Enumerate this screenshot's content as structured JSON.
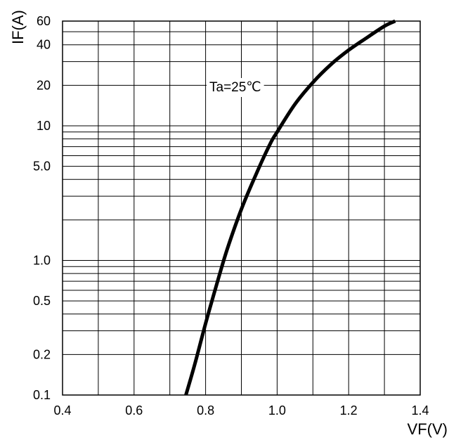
{
  "chart_data": {
    "type": "line",
    "xlabel": "VF(V)",
    "ylabel": "IF(A)",
    "xlim": [
      0.4,
      1.4
    ],
    "ylim": [
      0.1,
      60
    ],
    "yscale": "log",
    "grid": true,
    "x_ticks": [
      0.4,
      0.6,
      0.8,
      1.0,
      1.2,
      1.4
    ],
    "x_tick_labels": [
      "0.4",
      "0.6",
      "0.8",
      "1.0",
      "1.2",
      "1.4"
    ],
    "y_ticks": [
      0.1,
      0.2,
      0.5,
      1.0,
      5.0,
      10,
      20,
      40,
      60
    ],
    "y_tick_labels": [
      "0.1",
      "0.2",
      "0.5",
      "1.0",
      "5.0",
      "10",
      "20",
      "40",
      "60"
    ],
    "y_gridlines": [
      0.1,
      0.2,
      0.3,
      0.4,
      0.5,
      0.6,
      0.7,
      0.8,
      0.9,
      1,
      2,
      3,
      4,
      5,
      6,
      7,
      8,
      9,
      10,
      20,
      30,
      40,
      50,
      60
    ],
    "annotation": "Ta=25℃",
    "series": [
      {
        "x": [
          0.745,
          0.77,
          0.8,
          0.83,
          0.86,
          0.9,
          0.94,
          0.98,
          1.0,
          1.05,
          1.1,
          1.15,
          1.2,
          1.25,
          1.3,
          1.33
        ],
        "y": [
          0.1,
          0.17,
          0.34,
          0.65,
          1.2,
          2.4,
          4.3,
          7.3,
          9.0,
          14.5,
          21.0,
          28.5,
          36.5,
          45.0,
          55.0,
          60.0
        ]
      }
    ]
  }
}
